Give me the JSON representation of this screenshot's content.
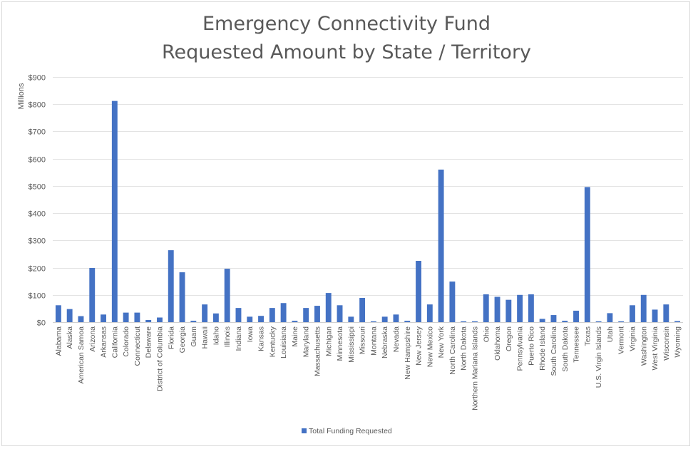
{
  "chart_data": {
    "type": "bar",
    "title": "Emergency Connectivity Fund",
    "subtitle": "Requested Amount by State / Territory",
    "ylabel": "Millions",
    "xlabel": "",
    "ylim": [
      0,
      900
    ],
    "yticks": [
      0,
      100,
      200,
      300,
      400,
      500,
      600,
      700,
      800,
      900
    ],
    "ytick_labels": [
      "$0",
      "$100",
      "$200",
      "$300",
      "$400",
      "$500",
      "$600",
      "$700",
      "$800",
      "$900"
    ],
    "grid": true,
    "legend_position": "bottom",
    "bar_color": "#4472C4",
    "categories": [
      "Alabama",
      "Alaska",
      "American Samoa",
      "Arizona",
      "Arkansas",
      "California",
      "Colorado",
      "Connecticut",
      "Delaware",
      "District of Columbia",
      "Florida",
      "Georgia",
      "Guam",
      "Hawaii",
      "Idaho",
      "Illinois",
      "Indiana",
      "Iowa",
      "Kansas",
      "Kentucky",
      "Louisiana",
      "Maine",
      "Maryland",
      "Massachusetts",
      "Michigan",
      "Minnesota",
      "Mississippi",
      "Missouri",
      "Montana",
      "Nebraska",
      "Nevada",
      "New Hampshire",
      "New Jersey",
      "New Mexico",
      "New York",
      "North Carolina",
      "North Dakota",
      "Northern Mariana Islands",
      "Ohio",
      "Oklahoma",
      "Oregon",
      "Pennsylvania",
      "Puerto Rico",
      "Rhode Island",
      "South Carolina",
      "South Dakota",
      "Tennessee",
      "Texas",
      "U.S. Virgin Islands",
      "Utah",
      "Vermont",
      "Virginia",
      "Washington",
      "West Virginia",
      "Wisconsin",
      "Wyoming"
    ],
    "series": [
      {
        "name": "Total Funding Requested",
        "values": [
          62,
          48,
          22,
          199,
          28,
          812,
          35,
          35,
          8,
          17,
          264,
          183,
          5,
          65,
          32,
          196,
          52,
          20,
          23,
          52,
          70,
          5,
          52,
          60,
          107,
          62,
          20,
          89,
          3,
          20,
          28,
          5,
          225,
          65,
          560,
          149,
          3,
          3,
          102,
          93,
          82,
          100,
          102,
          12,
          26,
          5,
          42,
          496,
          3,
          33,
          3,
          62,
          100,
          46,
          65,
          4
        ]
      }
    ]
  }
}
